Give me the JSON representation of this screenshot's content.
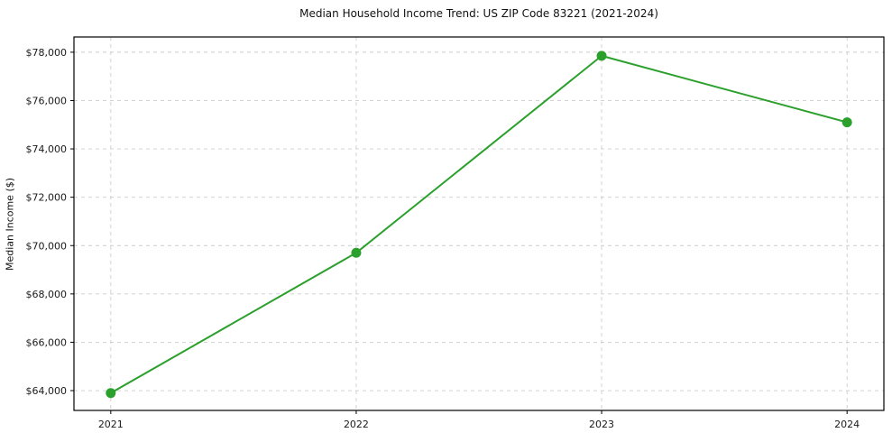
{
  "figure": {
    "title": "Median Household Income Trend: US ZIP Code 83221 (2021-2024)"
  },
  "chart_data": {
    "type": "line",
    "title": "Median Household Income Trend: US ZIP Code 83221 (2021-2024)",
    "xlabel": "",
    "ylabel": "Median Income ($)",
    "series": [
      {
        "name": "Median household income",
        "x": [
          2021,
          2022,
          2023,
          2024
        ],
        "values": [
          63900,
          69700,
          77850,
          75100
        ]
      }
    ],
    "xticks": {
      "values": [
        2021,
        2022,
        2023,
        2024
      ],
      "labels": [
        "2021",
        "2022",
        "2023",
        "2024"
      ]
    },
    "yticks": {
      "values": [
        64000,
        66000,
        68000,
        70000,
        72000,
        74000,
        76000,
        78000
      ],
      "labels": [
        "$64,000",
        "$66,000",
        "$68,000",
        "$70,000",
        "$72,000",
        "$74,000",
        "$76,000",
        "$78,000"
      ]
    },
    "xlim": [
      2020.85,
      2024.15
    ],
    "ylim": [
      63180,
      78630
    ],
    "grid": true,
    "grid_style": "dashed",
    "legend": false,
    "colors": {
      "line": "#2ca02c",
      "marker": "#2ca02c",
      "grid": "#cccccc",
      "axis": "#000000",
      "text": "#1a1a1a",
      "background": "#ffffff"
    },
    "marker_radius": 5.5,
    "line_width": 2
  }
}
